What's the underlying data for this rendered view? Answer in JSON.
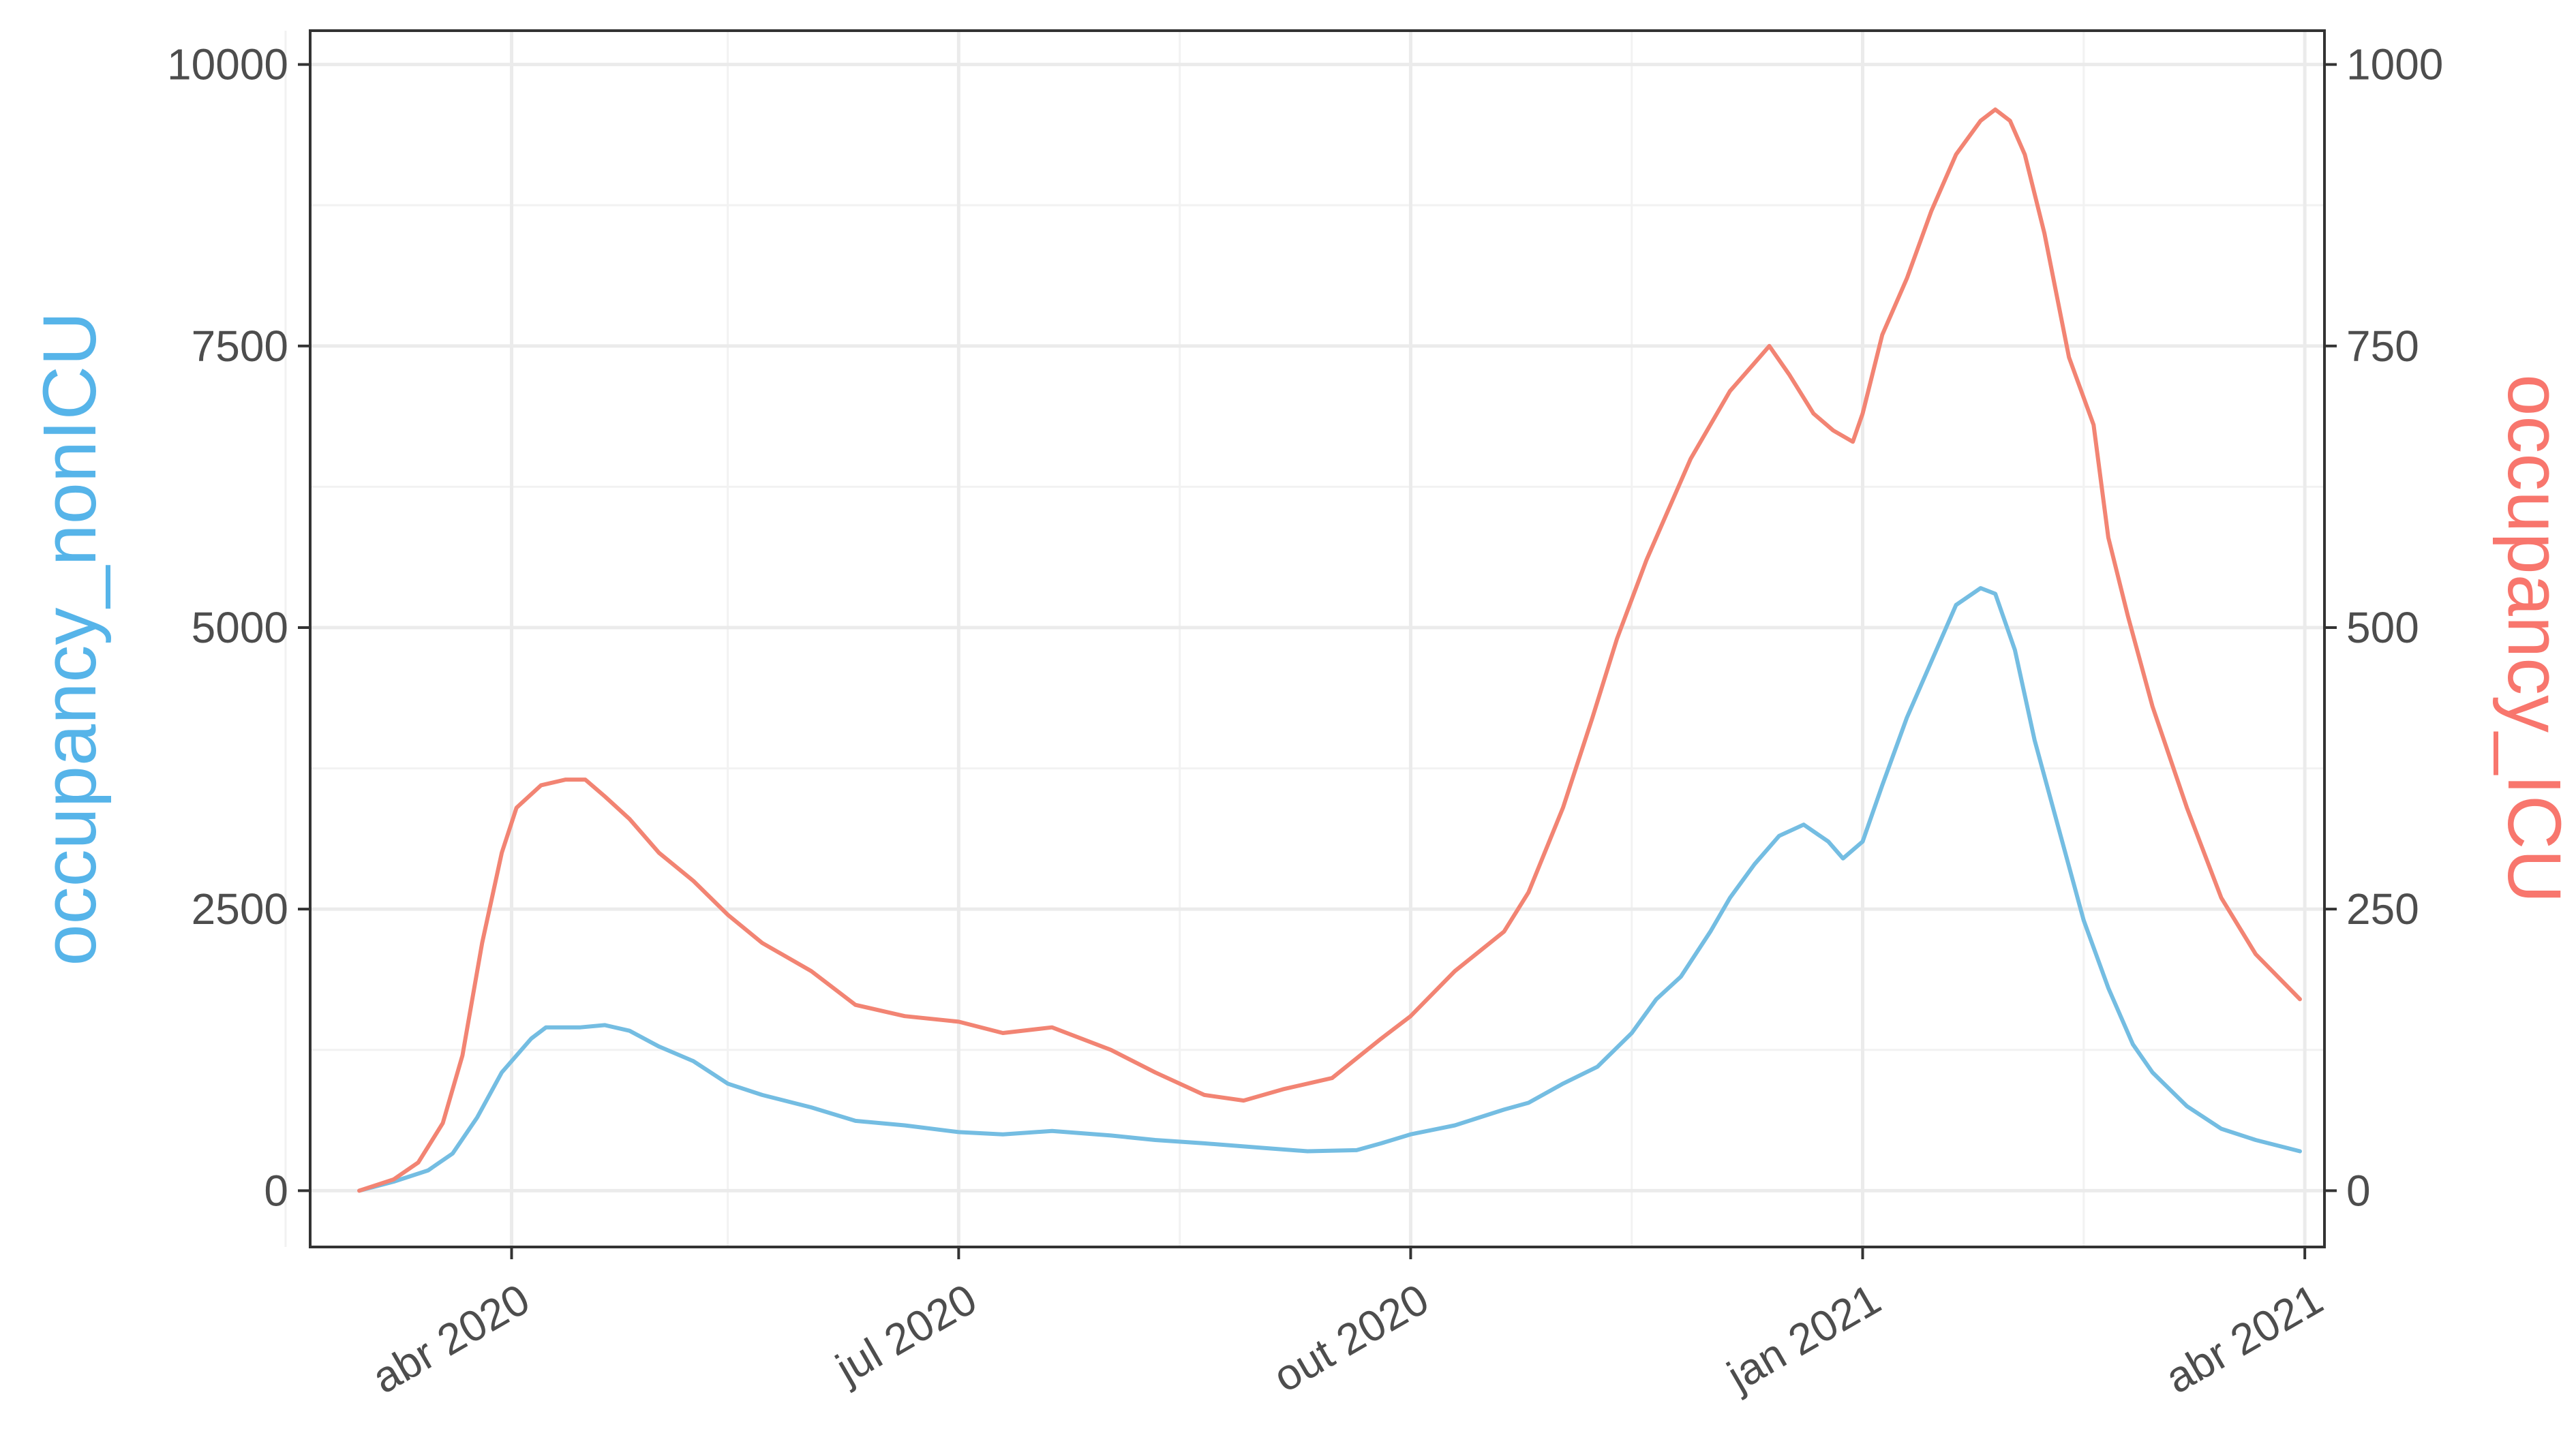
{
  "chart_data": {
    "type": "line",
    "x_axis": {
      "type": "date",
      "range": [
        "2020-02-20",
        "2021-04-05"
      ],
      "ticks": [
        {
          "date": "2020-04-01",
          "label": "abr 2020"
        },
        {
          "date": "2020-07-01",
          "label": "jul 2020"
        },
        {
          "date": "2020-10-01",
          "label": "out 2020"
        },
        {
          "date": "2021-01-01",
          "label": "jan 2021"
        },
        {
          "date": "2021-04-01",
          "label": "abr 2021"
        }
      ],
      "minor_gridlines": [
        "2020-02-15",
        "2020-05-15",
        "2020-08-15",
        "2020-11-15",
        "2021-02-15"
      ]
    },
    "y_left": {
      "label": "occupancy_nonICU",
      "color": "#56B4E9",
      "range": [
        -500,
        10300
      ],
      "ticks": [
        0,
        2500,
        5000,
        7500,
        10000
      ],
      "tick_labels": [
        "0",
        "2500",
        "5000",
        "7500",
        "10000"
      ]
    },
    "y_right": {
      "label": "occupancy_ICU",
      "color": "#F8766D",
      "range": [
        -50,
        1030
      ],
      "ticks": [
        0,
        250,
        500,
        750,
        1000
      ],
      "tick_labels": [
        "0",
        "250",
        "500",
        "750",
        "1000"
      ]
    },
    "grid": true,
    "legend": "none",
    "series": [
      {
        "axis": "left",
        "color": "#74BDE2",
        "points": [
          [
            "2020-03-01",
            0
          ],
          [
            "2020-03-08",
            80
          ],
          [
            "2020-03-15",
            180
          ],
          [
            "2020-03-20",
            330
          ],
          [
            "2020-03-25",
            650
          ],
          [
            "2020-03-30",
            1050
          ],
          [
            "2020-04-05",
            1350
          ],
          [
            "2020-04-08",
            1450
          ],
          [
            "2020-04-15",
            1450
          ],
          [
            "2020-04-20",
            1470
          ],
          [
            "2020-04-25",
            1420
          ],
          [
            "2020-05-01",
            1280
          ],
          [
            "2020-05-08",
            1150
          ],
          [
            "2020-05-15",
            950
          ],
          [
            "2020-05-22",
            850
          ],
          [
            "2020-06-01",
            740
          ],
          [
            "2020-06-10",
            620
          ],
          [
            "2020-06-20",
            580
          ],
          [
            "2020-07-01",
            520
          ],
          [
            "2020-07-10",
            500
          ],
          [
            "2020-07-20",
            530
          ],
          [
            "2020-08-01",
            490
          ],
          [
            "2020-08-10",
            450
          ],
          [
            "2020-08-20",
            420
          ],
          [
            "2020-09-01",
            380
          ],
          [
            "2020-09-10",
            350
          ],
          [
            "2020-09-20",
            360
          ],
          [
            "2020-09-25",
            420
          ],
          [
            "2020-10-01",
            500
          ],
          [
            "2020-10-10",
            580
          ],
          [
            "2020-10-20",
            720
          ],
          [
            "2020-10-25",
            780
          ],
          [
            "2020-11-01",
            950
          ],
          [
            "2020-11-08",
            1100
          ],
          [
            "2020-11-15",
            1400
          ],
          [
            "2020-11-20",
            1700
          ],
          [
            "2020-11-25",
            1900
          ],
          [
            "2020-12-01",
            2300
          ],
          [
            "2020-12-05",
            2600
          ],
          [
            "2020-12-10",
            2900
          ],
          [
            "2020-12-15",
            3150
          ],
          [
            "2020-12-20",
            3250
          ],
          [
            "2020-12-25",
            3100
          ],
          [
            "2020-12-28",
            2950
          ],
          [
            "2021-01-01",
            3100
          ],
          [
            "2021-01-05",
            3600
          ],
          [
            "2021-01-10",
            4200
          ],
          [
            "2021-01-15",
            4700
          ],
          [
            "2021-01-20",
            5200
          ],
          [
            "2021-01-25",
            5350
          ],
          [
            "2021-01-28",
            5300
          ],
          [
            "2021-02-01",
            4800
          ],
          [
            "2021-02-05",
            4000
          ],
          [
            "2021-02-10",
            3200
          ],
          [
            "2021-02-15",
            2400
          ],
          [
            "2021-02-20",
            1800
          ],
          [
            "2021-02-25",
            1300
          ],
          [
            "2021-03-01",
            1050
          ],
          [
            "2021-03-08",
            750
          ],
          [
            "2021-03-15",
            550
          ],
          [
            "2021-03-22",
            450
          ],
          [
            "2021-03-31",
            350
          ]
        ]
      },
      {
        "axis": "right",
        "color": "#F28473",
        "points": [
          [
            "2020-03-01",
            0
          ],
          [
            "2020-03-08",
            10
          ],
          [
            "2020-03-13",
            25
          ],
          [
            "2020-03-18",
            60
          ],
          [
            "2020-03-22",
            120
          ],
          [
            "2020-03-26",
            220
          ],
          [
            "2020-03-30",
            300
          ],
          [
            "2020-04-02",
            340
          ],
          [
            "2020-04-07",
            360
          ],
          [
            "2020-04-12",
            365
          ],
          [
            "2020-04-16",
            365
          ],
          [
            "2020-04-20",
            350
          ],
          [
            "2020-04-25",
            330
          ],
          [
            "2020-05-01",
            300
          ],
          [
            "2020-05-08",
            275
          ],
          [
            "2020-05-15",
            245
          ],
          [
            "2020-05-22",
            220
          ],
          [
            "2020-06-01",
            195
          ],
          [
            "2020-06-10",
            165
          ],
          [
            "2020-06-20",
            155
          ],
          [
            "2020-07-01",
            150
          ],
          [
            "2020-07-10",
            140
          ],
          [
            "2020-07-20",
            145
          ],
          [
            "2020-08-01",
            125
          ],
          [
            "2020-08-10",
            105
          ],
          [
            "2020-08-20",
            85
          ],
          [
            "2020-08-28",
            80
          ],
          [
            "2020-09-05",
            90
          ],
          [
            "2020-09-15",
            100
          ],
          [
            "2020-09-25",
            135
          ],
          [
            "2020-10-01",
            155
          ],
          [
            "2020-10-10",
            195
          ],
          [
            "2020-10-20",
            230
          ],
          [
            "2020-10-25",
            265
          ],
          [
            "2020-11-01",
            340
          ],
          [
            "2020-11-07",
            420
          ],
          [
            "2020-11-12",
            490
          ],
          [
            "2020-11-18",
            560
          ],
          [
            "2020-11-22",
            600
          ],
          [
            "2020-11-27",
            650
          ],
          [
            "2020-12-01",
            680
          ],
          [
            "2020-12-05",
            710
          ],
          [
            "2020-12-10",
            735
          ],
          [
            "2020-12-13",
            750
          ],
          [
            "2020-12-17",
            725
          ],
          [
            "2020-12-22",
            690
          ],
          [
            "2020-12-26",
            675
          ],
          [
            "2020-12-30",
            665
          ],
          [
            "2021-01-01",
            690
          ],
          [
            "2021-01-05",
            760
          ],
          [
            "2021-01-10",
            810
          ],
          [
            "2021-01-15",
            870
          ],
          [
            "2021-01-20",
            920
          ],
          [
            "2021-01-25",
            950
          ],
          [
            "2021-01-28",
            960
          ],
          [
            "2021-01-31",
            950
          ],
          [
            "2021-02-03",
            920
          ],
          [
            "2021-02-07",
            850
          ],
          [
            "2021-02-12",
            740
          ],
          [
            "2021-02-17",
            680
          ],
          [
            "2021-02-20",
            580
          ],
          [
            "2021-02-24",
            510
          ],
          [
            "2021-03-01",
            430
          ],
          [
            "2021-03-08",
            340
          ],
          [
            "2021-03-15",
            260
          ],
          [
            "2021-03-22",
            210
          ],
          [
            "2021-03-31",
            170
          ]
        ]
      }
    ]
  }
}
